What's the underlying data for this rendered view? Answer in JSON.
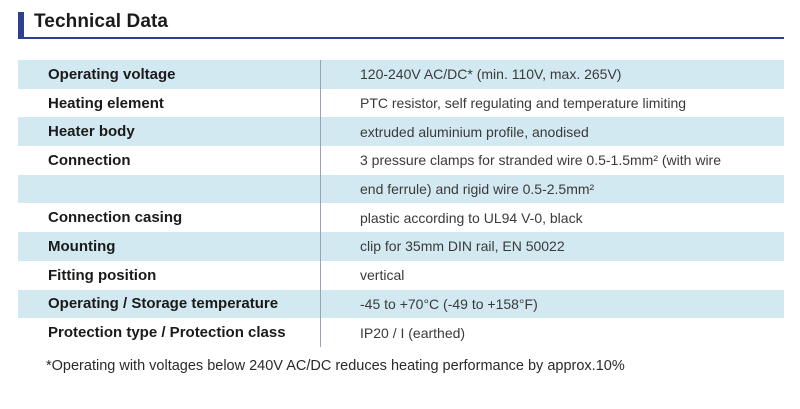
{
  "header": {
    "title": "Technical Data"
  },
  "table": {
    "rows": [
      {
        "label": "Operating voltage",
        "value": "120-240V AC/DC* (min. 110V, max. 265V)"
      },
      {
        "label": "Heating element",
        "value": "PTC resistor, self regulating and temperature limiting"
      },
      {
        "label": "Heater body",
        "value": "extruded aluminium profile, anodised"
      },
      {
        "label": "Connection",
        "value": "3 pressure clamps for stranded wire 0.5-1.5mm² (with wire"
      },
      {
        "label": "",
        "value": "end ferrule) and rigid wire 0.5-2.5mm²"
      },
      {
        "label": "Connection casing",
        "value": "plastic according to UL94 V-0, black"
      },
      {
        "label": "Mounting",
        "value": "clip for 35mm DIN rail, EN 50022"
      },
      {
        "label": "Fitting position",
        "value": "vertical"
      },
      {
        "label": "Operating / Storage temperature",
        "value": "-45 to +70°C (-49 to +158°F)"
      },
      {
        "label": "Protection type / Protection class",
        "value": "IP20 / I (earthed)"
      }
    ]
  },
  "footnote": "*Operating with voltages below 240V AC/DC reduces heating performance by approx.10%",
  "colors": {
    "accent": "#2e3f8f",
    "row_shade": "#d3e9f1"
  }
}
